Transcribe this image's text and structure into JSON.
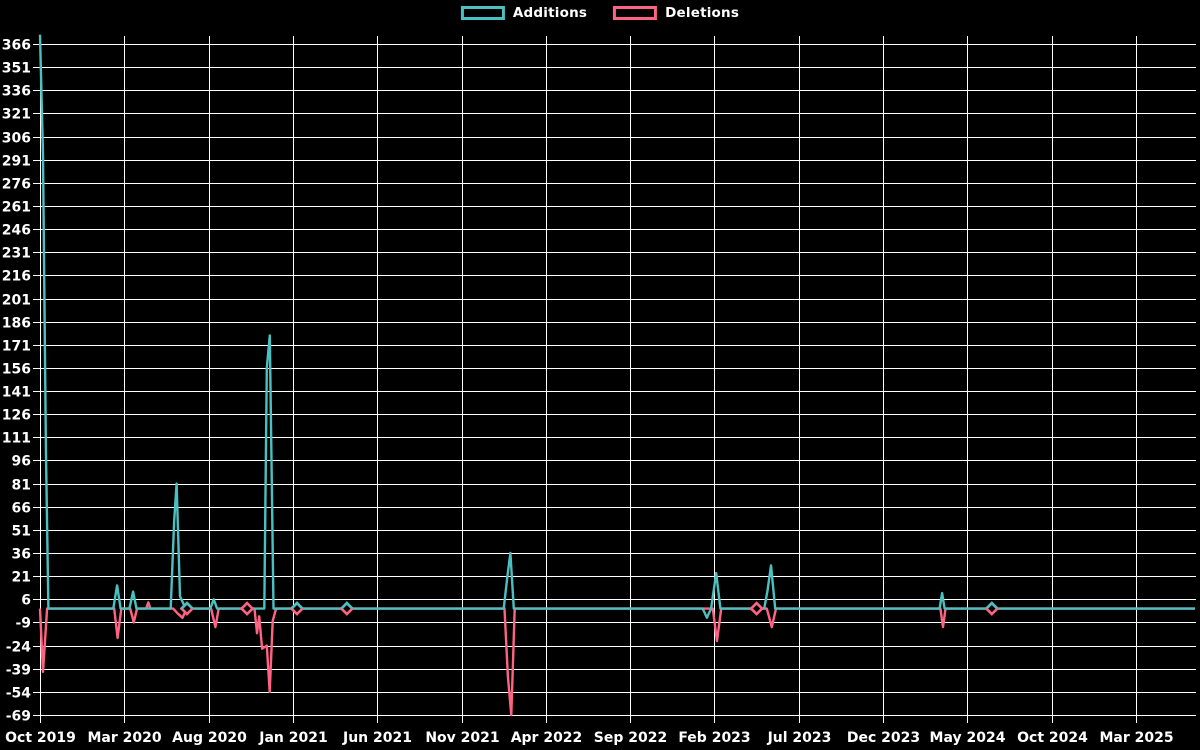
{
  "chart_data": {
    "type": "line",
    "title": "",
    "background_color": "#000000",
    "grid": true,
    "grid_color": "#ffffff",
    "text_color": "#ffffff",
    "legend": {
      "position": "top-center",
      "items": [
        {
          "label": "Additions",
          "color": "#4bc0c0"
        },
        {
          "label": "Deletions",
          "color": "#ff6384"
        }
      ]
    },
    "x_axis": {
      "tick_labels": [
        "Oct 2019",
        "Mar 2020",
        "Aug 2020",
        "Jan 2021",
        "Jun 2021",
        "Nov 2021",
        "Apr 2022",
        "Sep 2022",
        "Feb 2023",
        "Jul 2023",
        "Dec 2023",
        "May 2024",
        "Oct 2024",
        "Mar 2025"
      ],
      "tick_interval_months": 5,
      "unit": "months_after_Oct_2019"
    },
    "y_axis": {
      "min": -69,
      "max": 366,
      "step": 15,
      "tick_labels": [
        366,
        351,
        336,
        321,
        306,
        291,
        276,
        261,
        246,
        231,
        216,
        201,
        186,
        171,
        156,
        141,
        126,
        111,
        96,
        81,
        66,
        51,
        36,
        21,
        6,
        -9,
        -24,
        -39,
        -54,
        -69
      ]
    },
    "series": [
      {
        "name": "Additions",
        "color": "#4bc0c0",
        "points": [
          [
            0,
            372
          ],
          [
            0.18,
            294
          ],
          [
            0.35,
            104
          ],
          [
            0.5,
            0
          ],
          [
            4.35,
            0
          ],
          [
            4.57,
            15
          ],
          [
            4.78,
            0
          ],
          [
            5.3,
            0
          ],
          [
            5.52,
            11
          ],
          [
            5.72,
            0
          ],
          [
            7.75,
            0
          ],
          [
            7.95,
            56
          ],
          [
            8.1,
            81
          ],
          [
            8.3,
            8
          ],
          [
            8.55,
            2
          ],
          [
            8.75,
            0
          ],
          [
            10.1,
            0
          ],
          [
            10.3,
            6
          ],
          [
            10.5,
            0
          ],
          [
            13.3,
            0
          ],
          [
            13.45,
            156
          ],
          [
            13.63,
            177
          ],
          [
            13.85,
            0
          ],
          [
            27.5,
            0
          ],
          [
            27.72,
            21
          ],
          [
            27.9,
            36
          ],
          [
            28.1,
            0
          ],
          [
            39.3,
            0
          ],
          [
            39.55,
            -6
          ],
          [
            39.8,
            0
          ],
          [
            40.1,
            23
          ],
          [
            40.35,
            0
          ],
          [
            42.95,
            0
          ],
          [
            43.15,
            12
          ],
          [
            43.35,
            28
          ],
          [
            43.6,
            0
          ],
          [
            53.35,
            0
          ],
          [
            53.5,
            10
          ],
          [
            53.65,
            0
          ],
          [
            68.5,
            0
          ]
        ]
      },
      {
        "name": "Deletions",
        "color": "#ff6384",
        "points": [
          [
            0,
            0
          ],
          [
            0.18,
            -41
          ],
          [
            0.42,
            0
          ],
          [
            4.4,
            0
          ],
          [
            4.6,
            -19
          ],
          [
            4.82,
            0
          ],
          [
            5.35,
            0
          ],
          [
            5.56,
            -9
          ],
          [
            5.75,
            0
          ],
          [
            6.3,
            0
          ],
          [
            6.42,
            4
          ],
          [
            6.55,
            0
          ],
          [
            7.9,
            0
          ],
          [
            8.15,
            -3
          ],
          [
            8.45,
            -6
          ],
          [
            8.7,
            0
          ],
          [
            10.15,
            0
          ],
          [
            10.4,
            -12
          ],
          [
            10.6,
            0
          ],
          [
            12.72,
            0
          ],
          [
            12.87,
            -16
          ],
          [
            13.0,
            -5
          ],
          [
            13.17,
            -26
          ],
          [
            13.45,
            -24
          ],
          [
            13.62,
            -54
          ],
          [
            13.8,
            -8
          ],
          [
            14.0,
            0
          ],
          [
            27.55,
            0
          ],
          [
            27.75,
            -44
          ],
          [
            27.95,
            -69
          ],
          [
            28.15,
            0
          ],
          [
            39.9,
            0
          ],
          [
            40.15,
            -21
          ],
          [
            40.4,
            0
          ],
          [
            43.1,
            0
          ],
          [
            43.4,
            -12
          ],
          [
            43.65,
            0
          ],
          [
            53.4,
            0
          ],
          [
            53.55,
            -12
          ],
          [
            53.7,
            0
          ],
          [
            68.5,
            0
          ]
        ]
      }
    ],
    "zero_point_markers": [
      {
        "m": 8.72,
        "value": 0,
        "series": "both"
      },
      {
        "m": 12.28,
        "value": 0,
        "series": "deletions"
      },
      {
        "m": 15.24,
        "value": 0,
        "series": "both"
      },
      {
        "m": 18.2,
        "value": 0,
        "series": "both"
      },
      {
        "m": 42.5,
        "value": 0,
        "series": "deletions"
      },
      {
        "m": 56.45,
        "value": 0,
        "series": "both"
      }
    ]
  }
}
